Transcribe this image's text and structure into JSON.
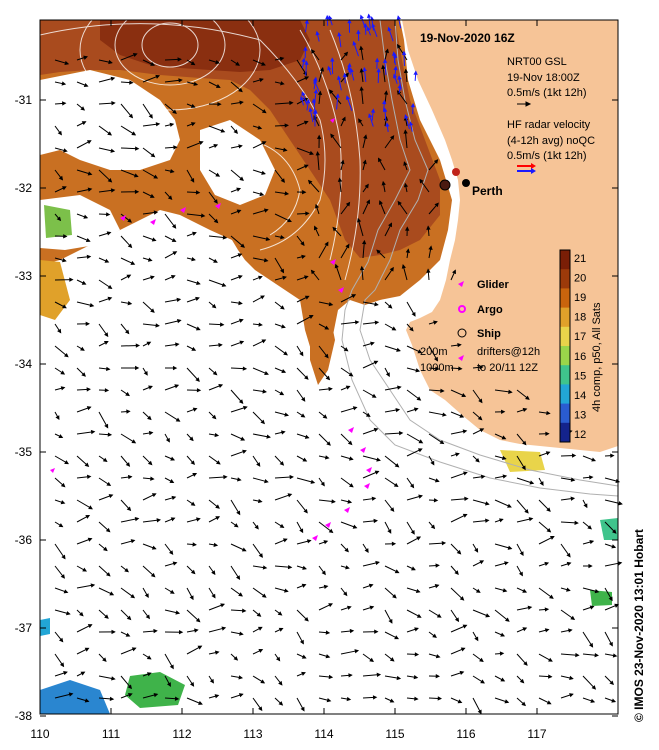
{
  "title": "19-Nov-2020 16Z",
  "city_label": "Perth",
  "legend": {
    "gsl_title": "NRT00 GSL",
    "gsl_time": "19-Nov 18:00Z",
    "gsl_scale": "0.5m/s (1kt 12h)",
    "hf_title": "HF radar velocity",
    "hf_avg": "(4-12h avg) noQC",
    "hf_scale": "0.5m/s (1kt 12h)",
    "glider": "Glider",
    "argo": "Argo",
    "ship": "Ship",
    "depth_200": "200m",
    "depth_1000": "1000m",
    "drifters_1": "drifters@12h",
    "drifters_2": "to 20/11 12Z"
  },
  "colorbar": {
    "label": "4h comp, p50, All Sats",
    "ticks": [
      "21",
      "20",
      "19",
      "18",
      "17",
      "16",
      "15",
      "14",
      "13",
      "12"
    ],
    "colors": [
      "#7a1e06",
      "#9c3a0a",
      "#c9640d",
      "#e0a12a",
      "#e9d44a",
      "#9ad64a",
      "#3fc48c",
      "#22a6d6",
      "#2a5cd0",
      "#14238c"
    ]
  },
  "axes": {
    "lon_ticks": [
      "110",
      "111",
      "112",
      "113",
      "114",
      "115",
      "116",
      "117"
    ],
    "lat_ticks": [
      "-31",
      "-32",
      "-33",
      "-34",
      "-35",
      "-36",
      "-37",
      "-38"
    ]
  },
  "credit": "© IMOS 23-Nov-2020 13:01 Hobart",
  "colors": {
    "land": "#f6c497",
    "sst_warm": "#a8471e",
    "sst_mid": "#c9701e",
    "sst_light": "#d88a2a",
    "hf_arrow": "#1a1aff",
    "marker": "#ff00ff"
  }
}
